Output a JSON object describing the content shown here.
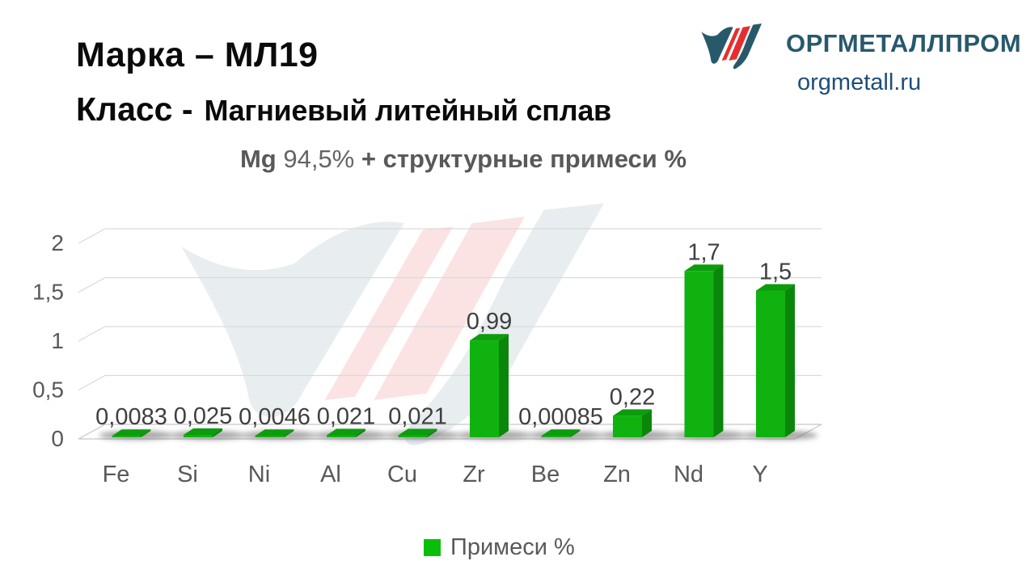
{
  "header": {
    "title": "Марка – МЛ19",
    "class_label": "Класс -",
    "class_value": "Магниевый литейный сплав"
  },
  "subtitle": {
    "prefix": "Mg",
    "value": "94,5%",
    "suffix": "+ структурные примеси %"
  },
  "logo": {
    "brand": "ОРГМЕТАЛЛПРОМ",
    "site": "orgmetall.ru",
    "teal": "#27596B",
    "red": "#E62E2E"
  },
  "chart_data": {
    "type": "bar",
    "style": "3d-column",
    "title": "Mg 94,5% + структурные примеси %",
    "categories": [
      "Fe",
      "Si",
      "Ni",
      "Al",
      "Cu",
      "Zr",
      "Be",
      "Zn",
      "Nd",
      "Y"
    ],
    "values": [
      0.0083,
      0.025,
      0.0046,
      0.021,
      0.021,
      0.99,
      0.00085,
      0.22,
      1.7,
      1.5
    ],
    "value_labels": [
      "0,0083",
      "0,025",
      "0,0046",
      "0,021",
      "0,021",
      "0,99",
      "0,00085",
      "0,22",
      "1,7",
      "1,5"
    ],
    "series_name": "Примеси %",
    "ylim": [
      0,
      2
    ],
    "yticks": [
      0,
      0.5,
      1,
      1.5,
      2
    ],
    "ytick_labels": [
      "0",
      "0,5",
      "1",
      "1,5",
      "2"
    ],
    "grid": true,
    "legend_position": "bottom",
    "colors": {
      "bar_front": "#10B210",
      "bar_top": "#0C9C0C",
      "bar_side": "#0A860A",
      "grid_line": "#D9D9D9",
      "axis_text": "#595959",
      "value_text": "#3F3F3F"
    }
  },
  "legend": {
    "label": "Примеси %"
  }
}
